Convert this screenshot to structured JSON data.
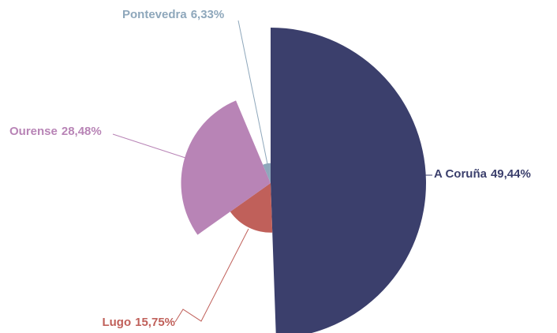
{
  "chart_data": {
    "type": "pie",
    "categories": [
      "A Coruña",
      "Lugo",
      "Ourense",
      "Pontevedra"
    ],
    "values": [
      49.44,
      15.75,
      28.48,
      6.33
    ],
    "value_labels": [
      "49,44%",
      "15,75%",
      "28,48%",
      "6,33%"
    ],
    "colors": [
      "#3b3f6c",
      "#c0605a",
      "#b884b6",
      "#8ea7bb"
    ]
  }
}
